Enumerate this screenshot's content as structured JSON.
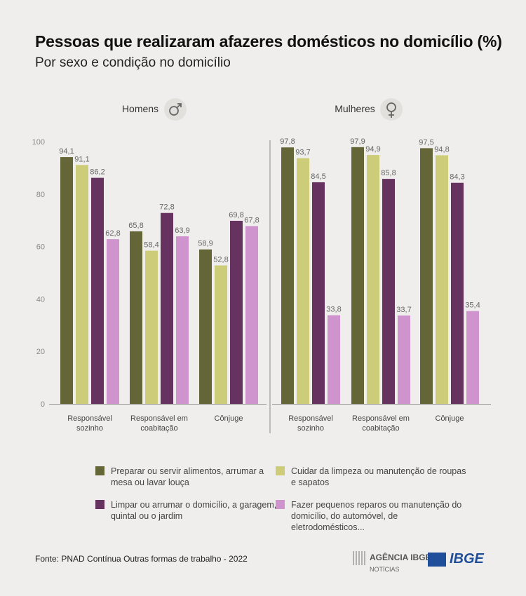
{
  "title": "Pessoas que realizaram afazeres domésticos no domicílio (%)",
  "subtitle": "Por sexo e condição no domicílio",
  "source": "Fonte: PNAD Contínua Outras formas de trabalho - 2022",
  "logos": {
    "agencia": "AGÊNCIA IBGE",
    "agencia_sub": "NOTÍCIAS",
    "ibge": "IBGE"
  },
  "legend": [
    {
      "label": "Preparar ou servir alimentos, arrumar a mesa ou lavar louça",
      "color": "#656637"
    },
    {
      "label": "Cuidar da limpeza ou manutenção de roupas e sapatos",
      "color": "#cccc79"
    },
    {
      "label": "Limpar ou arrumar o domicílio, a garagem, o quintal ou o jardim",
      "color": "#66325f"
    },
    {
      "label": "Fazer pequenos reparos ou manutenção do domicílio, do automóvel, de eletrodomésticos...",
      "color": "#cf93cd"
    }
  ],
  "chart_data": {
    "type": "bar",
    "ylim": [
      0,
      100
    ],
    "yticks": [
      0,
      20,
      40,
      60,
      80,
      100
    ],
    "grid": false,
    "legend_position": "bottom",
    "panels": [
      {
        "name": "Homens",
        "icon": "male-symbol-icon",
        "categories": [
          "Responsável sozinho",
          "Responsável em coabitação",
          "Cônjuge"
        ],
        "values": [
          [
            94.1,
            91.1,
            86.2,
            62.8
          ],
          [
            65.8,
            58.4,
            72.8,
            63.9
          ],
          [
            58.9,
            52.8,
            69.8,
            67.8
          ]
        ],
        "labels": [
          [
            "94,1",
            "91,1",
            "86,2",
            "62,8"
          ],
          [
            "65,8",
            "58,4",
            "72,8",
            "63,9"
          ],
          [
            "58,9",
            "52,8",
            "69,8",
            "67,8"
          ]
        ]
      },
      {
        "name": "Mulheres",
        "icon": "female-symbol-icon",
        "categories": [
          "Responsável sozinho",
          "Responsável em coabitação",
          "Cônjuge"
        ],
        "values": [
          [
            97.8,
            93.7,
            84.5,
            33.8
          ],
          [
            97.9,
            94.9,
            85.8,
            33.7
          ],
          [
            97.5,
            94.8,
            84.3,
            35.4
          ]
        ],
        "labels": [
          [
            "97,8",
            "93,7",
            "84,5",
            "33,8"
          ],
          [
            "97,9",
            "94,9",
            "85,8",
            "33,7"
          ],
          [
            "97,5",
            "94,8",
            "84,3",
            "35,4"
          ]
        ]
      }
    ]
  }
}
